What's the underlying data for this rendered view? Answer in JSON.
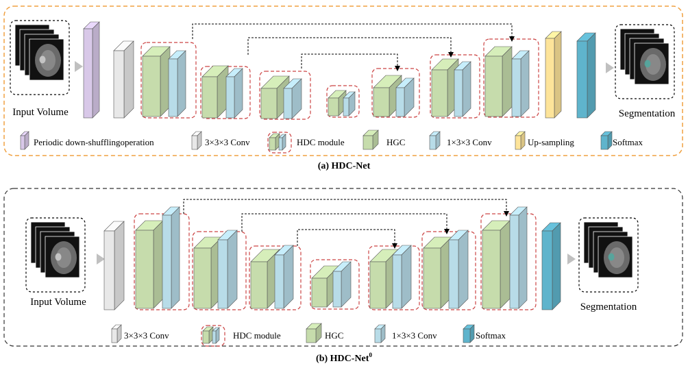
{
  "panel_a": {
    "input_label": "Input Volume",
    "output_label": "Segmentation",
    "caption_prefix": "(a)",
    "caption_name": "HDC-Net",
    "legend": {
      "shuffle": "Periodic down-shufflingoperation",
      "conv333": "3×3×3 Conv",
      "hdc": "HDC module",
      "hgc": "HGC",
      "conv133": "1×3×3  Conv",
      "upsample": "Up-sampling",
      "softmax": "Softmax"
    }
  },
  "panel_b": {
    "input_label": "Input Volume",
    "output_label": "Segmentation",
    "caption_prefix": "(b)",
    "caption_name": "HDC-Net",
    "caption_superscript": "0",
    "legend": {
      "conv333": "3×3×3 Conv",
      "hdc": "HDC module",
      "hgc": "HGC",
      "conv133": "1×3×3  Conv",
      "softmax": "Softmax"
    }
  },
  "colors": {
    "panel_a_border": "#f0a040",
    "panel_b_border": "#333333",
    "module_border": "#cc4444",
    "shuffle": "#d8c8e8",
    "conv333": "#e8e8e8",
    "hgc": "#c6dcac",
    "conv133": "#b8dce8",
    "upsample": "#fde49a",
    "softmax": "#5fb4cc",
    "arrow_grey": "#c0c0c0"
  }
}
